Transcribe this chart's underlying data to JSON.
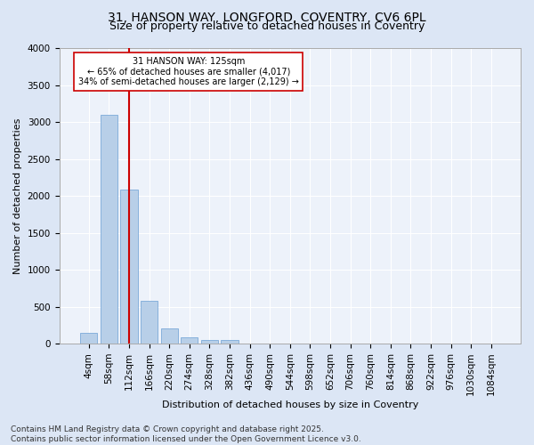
{
  "title_line1": "31, HANSON WAY, LONGFORD, COVENTRY, CV6 6PL",
  "title_line2": "Size of property relative to detached houses in Coventry",
  "xlabel": "Distribution of detached houses by size in Coventry",
  "ylabel": "Number of detached properties",
  "categories": [
    "4sqm",
    "58sqm",
    "112sqm",
    "166sqm",
    "220sqm",
    "274sqm",
    "328sqm",
    "382sqm",
    "436sqm",
    "490sqm",
    "544sqm",
    "598sqm",
    "652sqm",
    "706sqm",
    "760sqm",
    "814sqm",
    "868sqm",
    "922sqm",
    "976sqm",
    "1030sqm",
    "1084sqm"
  ],
  "values": [
    140,
    3100,
    2080,
    580,
    200,
    80,
    55,
    50,
    0,
    0,
    0,
    0,
    0,
    0,
    0,
    0,
    0,
    0,
    0,
    0,
    0
  ],
  "bar_color": "#b8cfe8",
  "bar_edge_color": "#6a9fd4",
  "vline_x_index": 2,
  "vline_color": "#cc0000",
  "annotation_text": "31 HANSON WAY: 125sqm\n← 65% of detached houses are smaller (4,017)\n34% of semi-detached houses are larger (2,129) →",
  "annotation_box_facecolor": "#ffffff",
  "annotation_box_edgecolor": "#cc0000",
  "ylim": [
    0,
    4000
  ],
  "yticks": [
    0,
    500,
    1000,
    1500,
    2000,
    2500,
    3000,
    3500,
    4000
  ],
  "footnote": "Contains HM Land Registry data © Crown copyright and database right 2025.\nContains public sector information licensed under the Open Government Licence v3.0.",
  "bg_color": "#dce6f5",
  "plot_bg": "#edf2fa",
  "title_fontsize": 10,
  "subtitle_fontsize": 9,
  "axis_label_fontsize": 8,
  "tick_fontsize": 7.5,
  "annotation_fontsize": 7,
  "footnote_fontsize": 6.5
}
